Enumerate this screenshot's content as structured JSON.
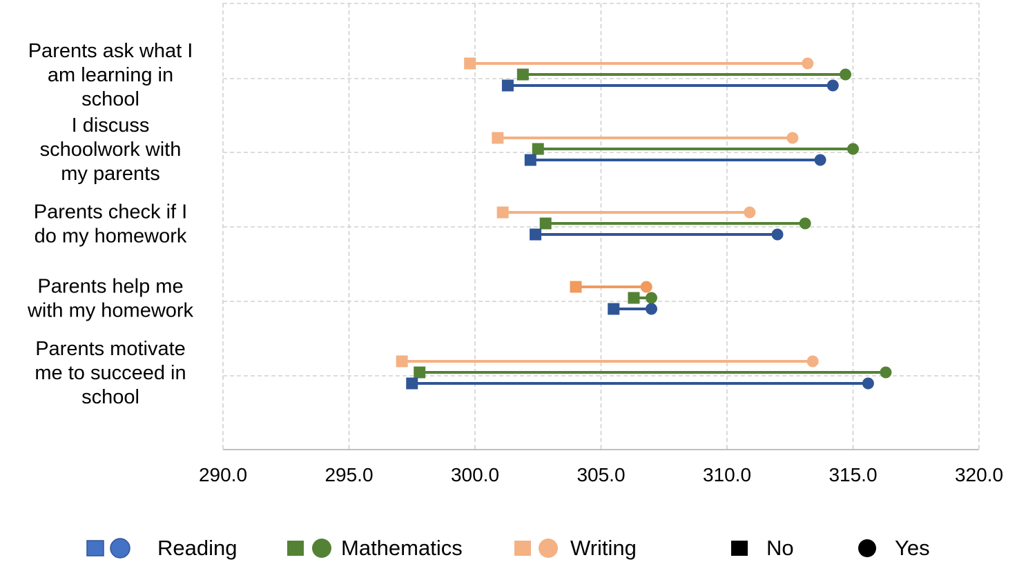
{
  "chart_data": {
    "type": "dumbbell",
    "orientation": "horizontal",
    "categories": [
      "Parents ask what I am learning in school",
      "I discuss schoolwork with my parents",
      "Parents check if I do my homework",
      "Parents help me with my homework",
      "Parents motivate me to succeed in school"
    ],
    "category_label_lines": [
      [
        "Parents ask what I",
        "am learning in",
        "school"
      ],
      [
        "I discuss",
        "schoolwork with",
        "my parents"
      ],
      [
        "Parents check if I",
        "do my homework"
      ],
      [
        "Parents help me",
        "with my homework"
      ],
      [
        "Parents motivate",
        "me to succeed in",
        "school"
      ]
    ],
    "series": [
      {
        "name": "Writing",
        "color": "#f4b183",
        "no": [
          299.8,
          300.9,
          301.1,
          304.0,
          297.1
        ],
        "yes": [
          313.2,
          312.6,
          310.9,
          306.8,
          313.4
        ]
      },
      {
        "name": "Mathematics",
        "color": "#548235",
        "no": [
          301.9,
          302.5,
          302.8,
          306.3,
          297.8
        ],
        "yes": [
          314.7,
          315.0,
          313.1,
          307.0,
          316.3
        ]
      },
      {
        "name": "Reading",
        "color": "#2f5597",
        "no": [
          301.3,
          302.2,
          302.4,
          305.5,
          297.5
        ],
        "yes": [
          314.2,
          313.7,
          312.0,
          307.0,
          315.6
        ]
      }
    ],
    "highlight_color_writing_row4": "#f09a5e",
    "xlim": [
      290,
      320
    ],
    "x_ticks": [
      290,
      295,
      300,
      305,
      310,
      315,
      320
    ],
    "x_tick_labels": [
      "290.0",
      "295.0",
      "300.0",
      "305.0",
      "310.0",
      "315.0",
      "320.0"
    ],
    "grid": true,
    "legend_position": "bottom",
    "legend": [
      {
        "label": "Reading",
        "color": "#4472c4",
        "kind": "square-circle"
      },
      {
        "label": "Mathematics",
        "color": "#548235",
        "kind": "square-circle"
      },
      {
        "label": "Writing",
        "color": "#f4b183",
        "kind": "square-circle"
      },
      {
        "label": "No",
        "color": "#000000",
        "kind": "square"
      },
      {
        "label": "Yes",
        "color": "#000000",
        "kind": "circle"
      }
    ]
  }
}
